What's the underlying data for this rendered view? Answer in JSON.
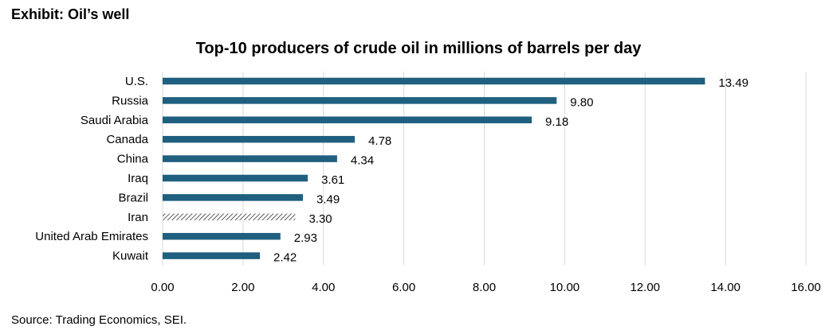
{
  "exhibit_title": "Exhibit: Oil’s well",
  "source": "Source: Trading Economics, SEI.",
  "chart_data": {
    "type": "bar",
    "orientation": "horizontal",
    "title": "Top-10 producers of crude oil in millions of barrels per day",
    "xlabel": "",
    "ylabel": "",
    "categories": [
      "U.S.",
      "Russia",
      "Saudi Arabia",
      "Canada",
      "China",
      "Iraq",
      "Brazil",
      "Iran",
      "United Arab Emirates",
      "Kuwait"
    ],
    "values": [
      13.49,
      9.8,
      9.18,
      4.78,
      4.34,
      3.61,
      3.49,
      3.3,
      2.93,
      2.42
    ],
    "value_labels": [
      "13.49",
      "9.80",
      "9.18",
      "4.78",
      "4.34",
      "3.61",
      "3.49",
      "3.30",
      "2.93",
      "2.42"
    ],
    "hatched_categories": [
      "Iran"
    ],
    "xlim": [
      0,
      16
    ],
    "xticks": [
      0,
      2,
      4,
      6,
      8,
      10,
      12,
      14,
      16
    ],
    "xtick_labels": [
      "0.00",
      "2.00",
      "4.00",
      "6.00",
      "8.00",
      "10.00",
      "12.00",
      "14.00",
      "16.00"
    ],
    "grid": "vertical",
    "legend": "none",
    "bar_color": "#1f5f7f",
    "hatch_color": "#333333",
    "grid_color": "#d9d9d9"
  }
}
